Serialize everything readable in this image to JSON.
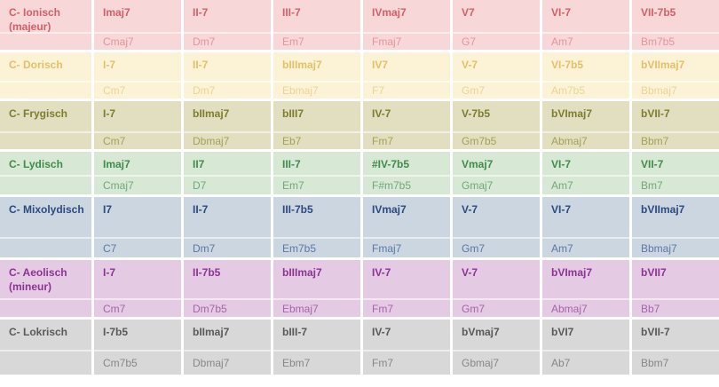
{
  "modes": [
    {
      "name": "C- Ionisch",
      "qualifier": "(majeur)",
      "colors": {
        "bg": "#f8d7d8",
        "text": "#d2606b",
        "chord_text": "#e2949c"
      },
      "numerals": [
        "Imaj7",
        "II-7",
        "III-7",
        "IVmaj7",
        "V7",
        "VI-7",
        "VII-7b5"
      ],
      "chords": [
        "Cmaj7",
        "Dm7",
        "Em7",
        "Fmaj7",
        "G7",
        "Am7",
        "Bm7b5"
      ]
    },
    {
      "name": "C- Dorisch",
      "qualifier": "",
      "colors": {
        "bg": "#fcf3d7",
        "text": "#e5c066",
        "chord_text": "#edd392"
      },
      "numerals": [
        "I-7",
        "II-7",
        "bIIImaj7",
        "IV7",
        "V-7",
        "VI-7b5",
        "bVIImaj7"
      ],
      "chords": [
        "Cm7",
        "Dm7",
        "Ebmaj7",
        "F7",
        "Gm7",
        "Am7b5",
        "Bbmaj7"
      ]
    },
    {
      "name": "C- Frygisch",
      "qualifier": "",
      "colors": {
        "bg": "#e1dfc0",
        "text": "#7e7c2e",
        "chord_text": "#a4a156"
      },
      "numerals": [
        "I-7",
        "bIImaj7",
        "bIII7",
        "IV-7",
        "V-7b5",
        "bVImaj7",
        "bVII-7"
      ],
      "chords": [
        "Cm7",
        "Dbmaj7",
        "Eb7",
        "Fm7",
        "Gm7b5",
        "Abmaj7",
        "Bbm7"
      ]
    },
    {
      "name": "C- Lydisch",
      "qualifier": "",
      "colors": {
        "bg": "#d7e8d5",
        "text": "#3f8c4b",
        "chord_text": "#6fa977"
      },
      "numerals": [
        "Imaj7",
        "II7",
        "III-7",
        "#IV-7b5",
        "Vmaj7",
        "VI-7",
        "VII-7"
      ],
      "chords": [
        "Cmaj7",
        "D7",
        "Em7",
        "F#m7b5",
        "Gmaj7",
        "Am7",
        "Bm7"
      ]
    },
    {
      "name": "C- Mixolydisch",
      "qualifier": "",
      "colors": {
        "bg": "#cbd6e1",
        "text": "#2b4a7f",
        "chord_text": "#5a78a6"
      },
      "numerals": [
        "I7",
        "II-7",
        "III-7b5",
        "IVmaj7",
        "V-7",
        "VI-7",
        "bVIImaj7"
      ],
      "chords": [
        "C7",
        "Dm7",
        "Em7b5",
        "Fmaj7",
        "Gm7",
        "Am7",
        "Bbmaj7"
      ]
    },
    {
      "name": "C- Aeolisch",
      "qualifier": "(mineur)",
      "colors": {
        "bg": "#e4cbe3",
        "text": "#8e3295",
        "chord_text": "#a763ac"
      },
      "numerals": [
        "I-7",
        "II-7b5",
        "bIIImaj7",
        "IV-7",
        "V-7",
        "bVImaj7",
        "bVII7"
      ],
      "chords": [
        "Cm7",
        "Dm7b5",
        "Ebmaj7",
        "Fm7",
        "Gm7",
        "Abmaj7",
        "Bb7"
      ]
    },
    {
      "name": "C- Lokrisch",
      "qualifier": "",
      "colors": {
        "bg": "#d8d8d8",
        "text": "#595959",
        "chord_text": "#878787"
      },
      "numerals": [
        "I-7b5",
        "bIImaj7",
        "bIII-7",
        "IV-7",
        "bVmaj7",
        "bVI7",
        "bVII-7"
      ],
      "chords": [
        "Cm7b5",
        "Dbmaj7",
        "Ebm7",
        "Fm7",
        "Gbmaj7",
        "Ab7",
        "Bbm7"
      ]
    }
  ],
  "chart_data": {
    "type": "table",
    "rows": [
      {
        "mode": "C- Ionisch (majeur)",
        "roman_numerals": [
          "Imaj7",
          "II-7",
          "III-7",
          "IVmaj7",
          "V7",
          "VI-7",
          "VII-7b5"
        ],
        "chords": [
          "Cmaj7",
          "Dm7",
          "Em7",
          "Fmaj7",
          "G7",
          "Am7",
          "Bm7b5"
        ]
      },
      {
        "mode": "C- Dorisch",
        "roman_numerals": [
          "I-7",
          "II-7",
          "bIIImaj7",
          "IV7",
          "V-7",
          "VI-7b5",
          "bVIImaj7"
        ],
        "chords": [
          "Cm7",
          "Dm7",
          "Ebmaj7",
          "F7",
          "Gm7",
          "Am7b5",
          "Bbmaj7"
        ]
      },
      {
        "mode": "C- Frygisch",
        "roman_numerals": [
          "I-7",
          "bIImaj7",
          "bIII7",
          "IV-7",
          "V-7b5",
          "bVImaj7",
          "bVII-7"
        ],
        "chords": [
          "Cm7",
          "Dbmaj7",
          "Eb7",
          "Fm7",
          "Gm7b5",
          "Abmaj7",
          "Bbm7"
        ]
      },
      {
        "mode": "C- Lydisch",
        "roman_numerals": [
          "Imaj7",
          "II7",
          "III-7",
          "#IV-7b5",
          "Vmaj7",
          "VI-7",
          "VII-7"
        ],
        "chords": [
          "Cmaj7",
          "D7",
          "Em7",
          "F#m7b5",
          "Gmaj7",
          "Am7",
          "Bm7"
        ]
      },
      {
        "mode": "C- Mixolydisch",
        "roman_numerals": [
          "I7",
          "II-7",
          "III-7b5",
          "IVmaj7",
          "V-7",
          "VI-7",
          "bVIImaj7"
        ],
        "chords": [
          "C7",
          "Dm7",
          "Em7b5",
          "Fmaj7",
          "Gm7",
          "Am7",
          "Bbmaj7"
        ]
      },
      {
        "mode": "C- Aeolisch (mineur)",
        "roman_numerals": [
          "I-7",
          "II-7b5",
          "bIIImaj7",
          "IV-7",
          "V-7",
          "bVImaj7",
          "bVII7"
        ],
        "chords": [
          "Cm7",
          "Dm7b5",
          "Ebmaj7",
          "Fm7",
          "Gm7",
          "Abmaj7",
          "Bb7"
        ]
      },
      {
        "mode": "C- Lokrisch",
        "roman_numerals": [
          "I-7b5",
          "bIImaj7",
          "bIII-7",
          "IV-7",
          "bVmaj7",
          "bVI7",
          "bVII-7"
        ],
        "chords": [
          "Cm7b5",
          "Dbmaj7",
          "Ebm7",
          "Fm7",
          "Gbmaj7",
          "Ab7",
          "Bbm7"
        ]
      }
    ]
  }
}
